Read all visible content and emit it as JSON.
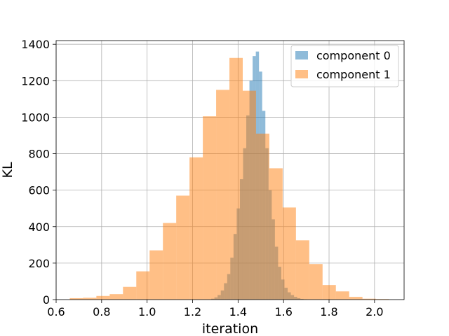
{
  "chart_data": {
    "type": "histogram",
    "title": "",
    "xlabel": "iteration",
    "ylabel": "KL",
    "xlim": [
      0.6,
      2.13
    ],
    "ylim": [
      0,
      1420
    ],
    "xticks": [
      "0.6",
      "0.8",
      "1.0",
      "1.2",
      "1.4",
      "1.6",
      "1.8",
      "2.0"
    ],
    "yticks": [
      "0",
      "200",
      "400",
      "600",
      "800",
      "1000",
      "1200",
      "1400"
    ],
    "xtick_values": [
      0.6,
      0.8,
      1.0,
      1.2,
      1.4,
      1.6,
      1.8,
      2.0
    ],
    "ytick_values": [
      0,
      200,
      400,
      600,
      800,
      1000,
      1200,
      1400
    ],
    "grid": true,
    "legend": "top-right",
    "series": [
      {
        "name": "component 0",
        "color": "#1f77b4",
        "opacity": 0.5,
        "bin_edges": [
          1.282,
          1.296,
          1.31,
          1.324,
          1.338,
          1.352,
          1.366,
          1.38,
          1.394,
          1.408,
          1.422,
          1.436,
          1.45,
          1.464,
          1.478,
          1.492,
          1.506,
          1.52,
          1.534,
          1.548,
          1.562,
          1.576,
          1.59,
          1.604,
          1.618,
          1.632,
          1.646,
          1.66,
          1.674,
          1.688,
          1.702
        ],
        "counts": [
          5,
          12,
          25,
          50,
          90,
          140,
          230,
          360,
          500,
          660,
          830,
          1010,
          1200,
          1335,
          1360,
          1250,
          1035,
          830,
          600,
          440,
          290,
          180,
          110,
          65,
          40,
          25,
          15,
          8,
          4,
          2
        ]
      },
      {
        "name": "component 1",
        "color": "#ff7f0e",
        "opacity": 0.5,
        "bin_edges": [
          0.66,
          0.7185,
          0.777,
          0.8355,
          0.894,
          0.9525,
          1.011,
          1.0695,
          1.128,
          1.1865,
          1.245,
          1.3035,
          1.362,
          1.4205,
          1.479,
          1.5375,
          1.596,
          1.6545,
          1.713,
          1.7715,
          1.83,
          1.8885,
          1.947,
          2.0055,
          2.064
        ],
        "counts": [
          8,
          10,
          20,
          30,
          70,
          155,
          270,
          420,
          570,
          780,
          1005,
          1150,
          1325,
          1145,
          910,
          720,
          505,
          325,
          195,
          80,
          45,
          15,
          5,
          3
        ]
      }
    ]
  }
}
